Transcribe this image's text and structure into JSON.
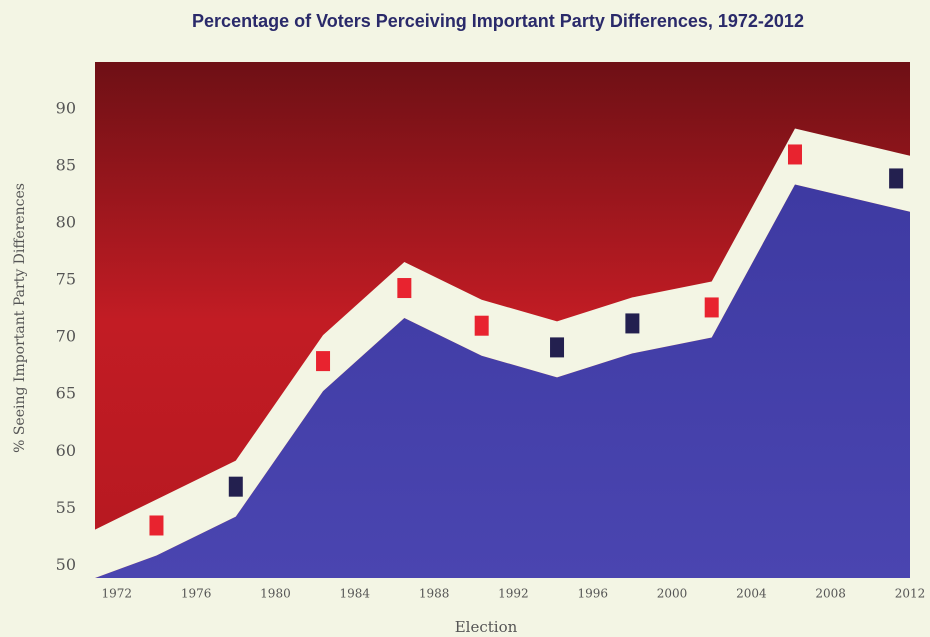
{
  "chart_data": {
    "type": "band-marker",
    "title": "Percentage of Voters Perceiving Important Party Differences, 1972-2012",
    "y_label": "% Seeing Important Party Differences",
    "x_label": "Election",
    "x": [
      1974,
      1978,
      1982.4,
      1986.5,
      1990.4,
      1994.2,
      1998,
      2002,
      2006.2,
      2011.3
    ],
    "values": [
      53.5,
      56.9,
      67.9,
      74.3,
      71.0,
      69.1,
      71.2,
      72.6,
      86.0,
      83.9
    ],
    "colors": [
      "#e8232f",
      "#23204f",
      "#e8232f",
      "#e8232f",
      "#e8232f",
      "#23204f",
      "#23204f",
      "#e8232f",
      "#e8232f",
      "#23204f"
    ],
    "xlim": [
      1970.9,
      2012
    ],
    "ylim": [
      48.9,
      94.1
    ],
    "xticks": [
      1972,
      1976,
      1980,
      1984,
      1988,
      1992,
      1996,
      2000,
      2004,
      2008,
      2012
    ],
    "yticks": [
      50,
      55,
      60,
      65,
      70,
      75,
      80,
      85,
      90
    ]
  }
}
